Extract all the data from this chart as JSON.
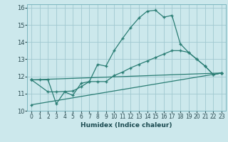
{
  "xlabel": "Humidex (Indice chaleur)",
  "bg_color": "#cce8ec",
  "grid_color": "#a0c8d0",
  "line_color": "#2a7d74",
  "xlim": [
    -0.5,
    23.5
  ],
  "ylim": [
    10,
    16.2
  ],
  "yticks": [
    10,
    11,
    12,
    13,
    14,
    15,
    16
  ],
  "xticks": [
    0,
    1,
    2,
    3,
    4,
    5,
    6,
    7,
    8,
    9,
    10,
    11,
    12,
    13,
    14,
    15,
    16,
    17,
    18,
    19,
    20,
    21,
    22,
    23
  ],
  "line1_x": [
    0,
    1,
    2,
    3,
    4,
    5,
    6,
    7,
    8,
    9,
    10,
    11,
    12,
    13,
    14,
    15,
    16,
    17,
    18,
    19,
    20,
    21,
    22,
    23
  ],
  "line1_y": [
    11.8,
    11.8,
    11.8,
    10.4,
    11.1,
    10.9,
    11.6,
    11.7,
    12.7,
    12.6,
    13.5,
    14.2,
    14.85,
    15.4,
    15.8,
    15.85,
    15.45,
    15.55,
    13.9,
    13.4,
    13.0,
    12.6,
    12.1,
    12.2
  ],
  "line2_x": [
    0,
    2,
    3,
    5,
    6,
    7,
    8,
    9,
    10,
    11,
    12,
    13,
    14,
    15,
    16,
    17,
    18,
    19,
    20,
    21,
    22,
    23
  ],
  "line2_y": [
    11.8,
    11.1,
    11.1,
    11.15,
    11.4,
    11.7,
    11.7,
    11.7,
    12.05,
    12.25,
    12.5,
    12.7,
    12.9,
    13.1,
    13.3,
    13.5,
    13.5,
    13.4,
    13.0,
    12.6,
    12.1,
    12.2
  ],
  "line3_x": [
    0,
    23
  ],
  "line3_y": [
    11.8,
    12.2
  ],
  "line4_x": [
    0,
    23
  ],
  "line4_y": [
    10.35,
    12.2
  ]
}
